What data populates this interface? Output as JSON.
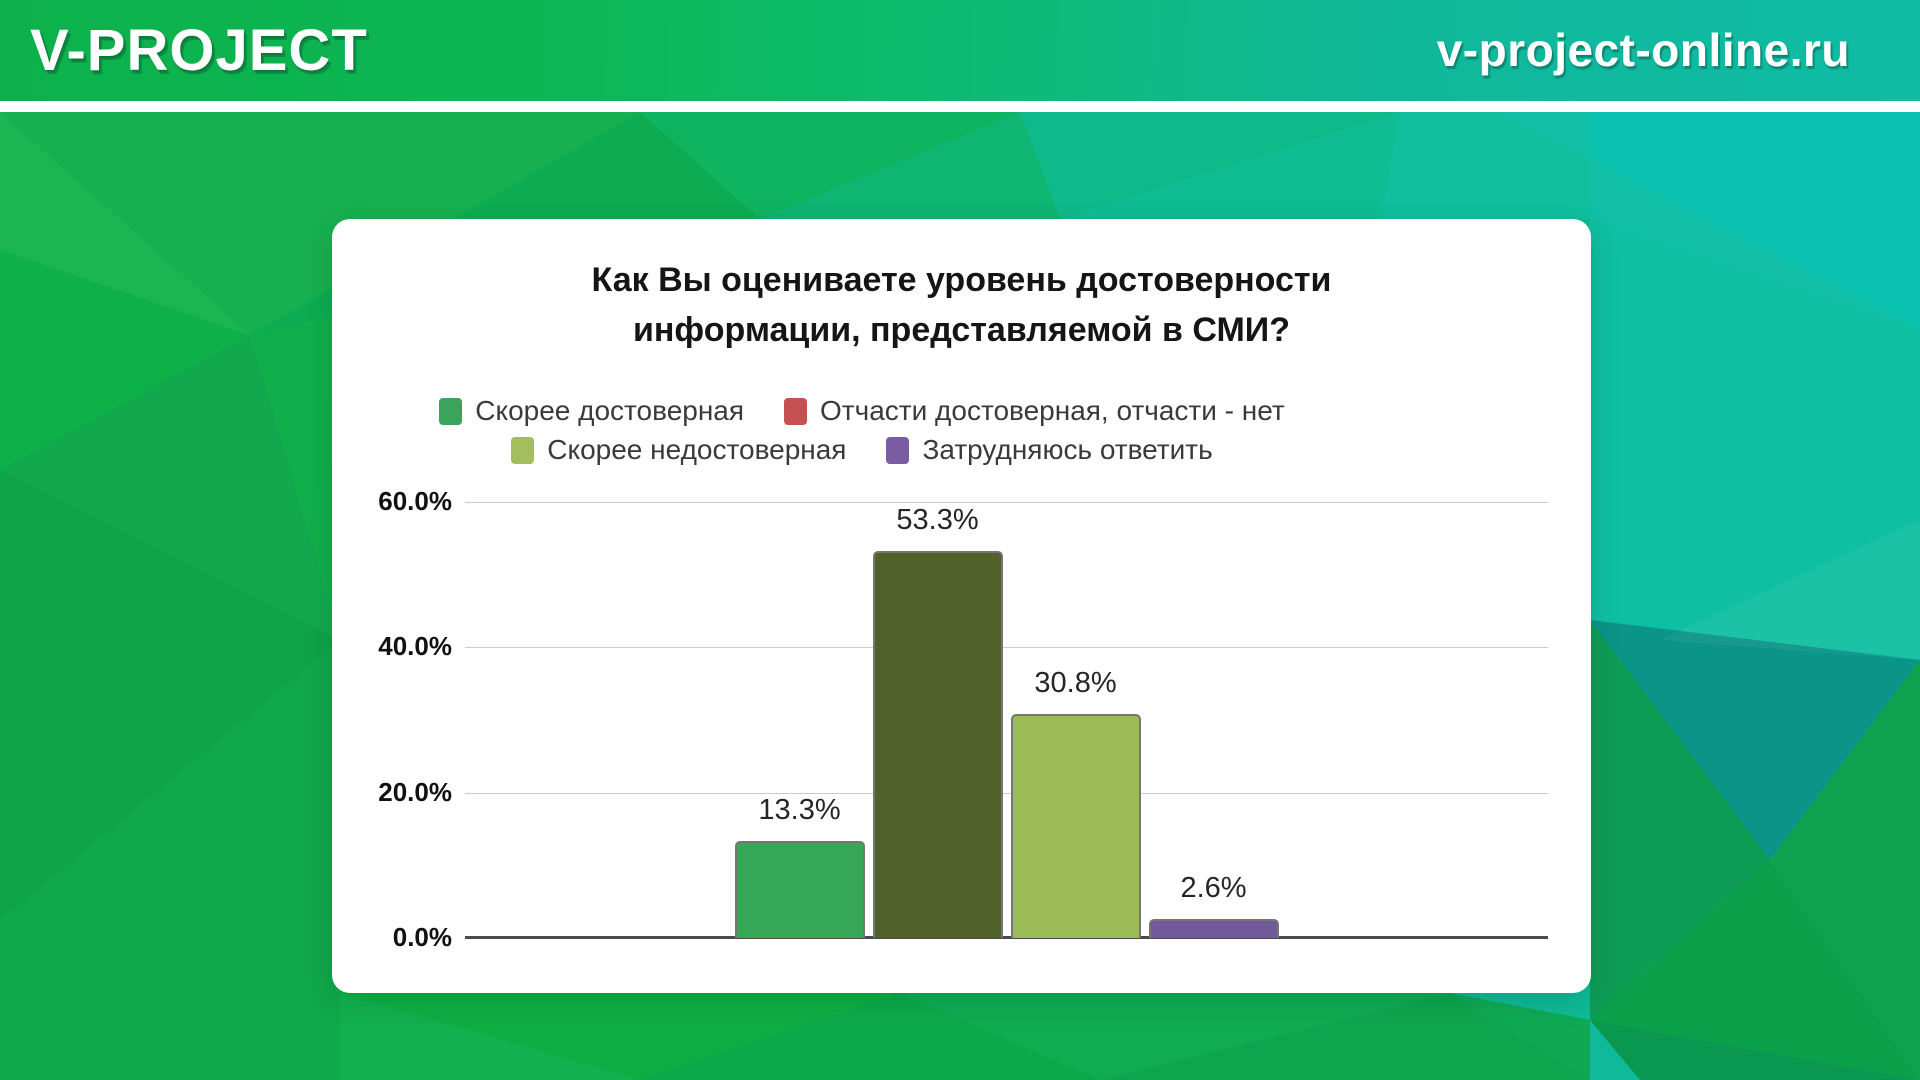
{
  "header": {
    "logo_text": "V-PROJECT",
    "site_url": "v-project-online.ru"
  },
  "chart_data": {
    "type": "bar",
    "title": "Как Вы оцениваете уровень достоверности информации, представляемой в СМИ?",
    "title_lines": [
      "Как Вы оцениваете уровень достоверности",
      "информации, представляемой в СМИ?"
    ],
    "categories": [
      "Скорее достоверная",
      "Отчасти достоверная, отчасти - нет",
      "Скорее недостоверная",
      "Затрудняюсь ответить"
    ],
    "values": [
      13.3,
      53.3,
      30.8,
      2.6
    ],
    "value_labels": [
      "13.3%",
      "53.3%",
      "30.8%",
      "2.6%"
    ],
    "xlabel": "",
    "ylabel": "",
    "ylim": [
      0,
      60
    ],
    "yticks": [
      {
        "value": 60,
        "label": "60.0%"
      },
      {
        "value": 40,
        "label": "40.0%"
      },
      {
        "value": 20,
        "label": "20.0%"
      },
      {
        "value": 0,
        "label": "0.0%"
      }
    ],
    "grid": true,
    "legend_position": "top",
    "legend": [
      {
        "label": "Скорее достоверная",
        "color": "#3BA35B"
      },
      {
        "label": "Отчасти достоверная, отчасти - нет",
        "color": "#C45052"
      },
      {
        "label": "Скорее недостоверная",
        "color": "#A5BE5D"
      },
      {
        "label": "Затрудняюсь ответить",
        "color": "#7A5CA3"
      }
    ],
    "bar_colors": [
      "#35A756",
      "#50622A",
      "#9CBC58",
      "#71599B"
    ]
  },
  "theme": {
    "header_gradient_start": "#0CB14B",
    "header_gradient_end": "#0FBCA4",
    "card_background": "#FFFFFF",
    "grid_color": "#CCCCCC",
    "axis_color": "#4B4B4B",
    "title_color": "#151515"
  }
}
